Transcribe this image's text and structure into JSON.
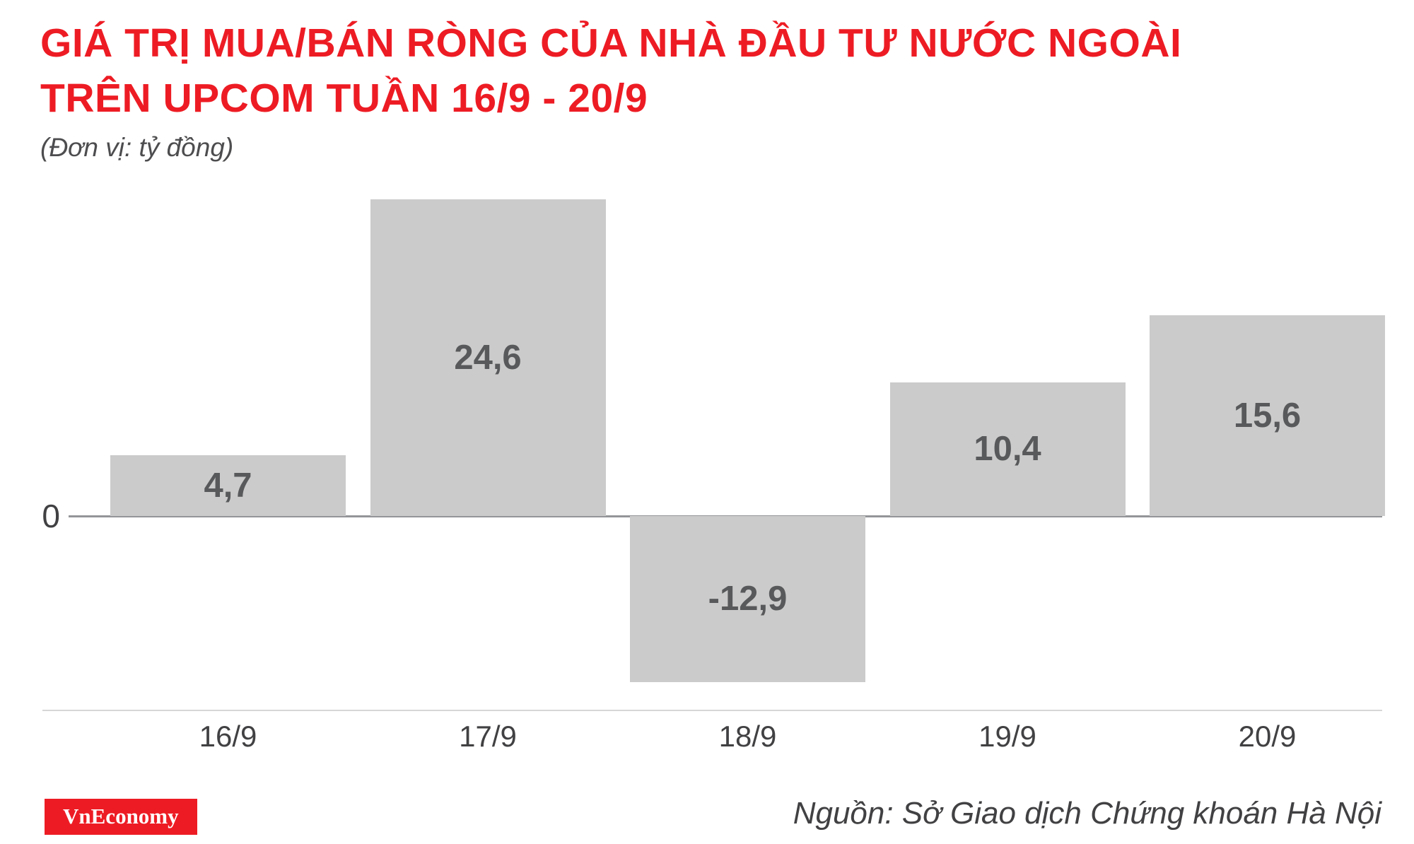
{
  "header": {
    "line1": "GIÁ TRỊ MUA/BÁN RÒNG CỦA NHÀ ĐẦU TƯ NƯỚC NGOÀI",
    "line2": "TRÊN UPCOM TUẦN 16/9 - 20/9",
    "subtitle": "(Đơn vị: tỷ đồng)"
  },
  "footer": {
    "logo": "VnEconomy",
    "source": "Nguồn: Sở Giao dịch Chứng khoán Hà Nội"
  },
  "colors": {
    "title_red": "#ed1c24",
    "bar_gray": "#cbcbcb",
    "value_text": "#58595b",
    "axis_text": "#414042"
  },
  "chart_data": {
    "type": "bar",
    "title": "Giá trị mua/bán ròng của nhà đầu tư nước ngoài trên UPCoM tuần 16/9 - 20/9",
    "subtitle_unit": "tỷ đồng",
    "categories": [
      "16/9",
      "17/9",
      "18/9",
      "19/9",
      "20/9"
    ],
    "values": [
      4.7,
      24.6,
      -12.9,
      10.4,
      15.6
    ],
    "value_labels": [
      "4,7",
      "24,6",
      "-12,9",
      "10,4",
      "15,6"
    ],
    "xlabel": "",
    "ylabel": "tỷ đồng",
    "zero_label": "0",
    "ylim": [
      -15,
      25
    ],
    "grid": false,
    "legend": "none",
    "bar_color": "#cbcbcb",
    "label_position": "center-inside"
  }
}
